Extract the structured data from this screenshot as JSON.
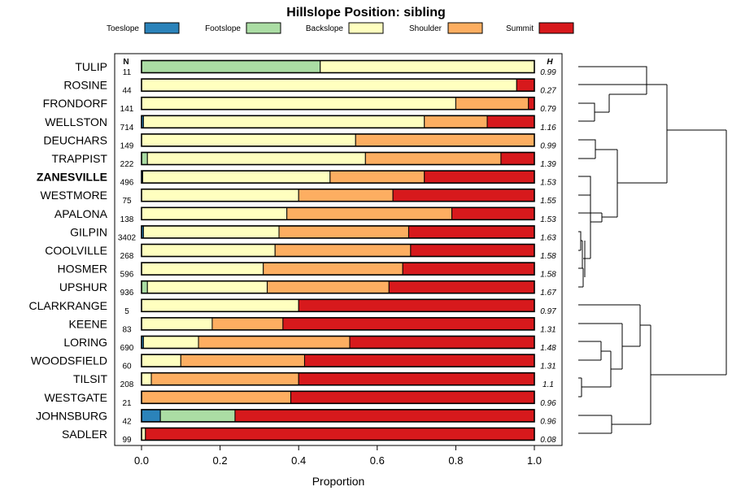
{
  "chart_data": {
    "type": "bar",
    "subtype": "stacked-horizontal-proportion",
    "title": "Hillslope Position: sibling",
    "xlabel": "Proportion",
    "ylabel": "",
    "xlim": [
      0,
      1
    ],
    "x_ticks": [
      "0.0",
      "0.2",
      "0.4",
      "0.6",
      "0.8",
      "1.0"
    ],
    "x_tick_values": [
      0,
      0.2,
      0.4,
      0.6,
      0.8,
      1.0
    ],
    "n_header": "N",
    "h_header": "H",
    "highlighted_row": "ZANESVILLE",
    "legend": [
      {
        "name": "Toeslope",
        "color": "#2b83ba"
      },
      {
        "name": "Footslope",
        "color": "#abdda4"
      },
      {
        "name": "Backslope",
        "color": "#ffffbf"
      },
      {
        "name": "Shoulder",
        "color": "#fdae61"
      },
      {
        "name": "Summit",
        "color": "#d7191c"
      }
    ],
    "rows": [
      {
        "name": "TULIP",
        "n": "11",
        "h": "0.99",
        "values": [
          0,
          0.455,
          0.545,
          0,
          0
        ]
      },
      {
        "name": "ROSINE",
        "n": "44",
        "h": "0.27",
        "values": [
          0,
          0,
          0.955,
          0,
          0.045
        ]
      },
      {
        "name": "FRONDORF",
        "n": "141",
        "h": "0.79",
        "values": [
          0,
          0,
          0.8,
          0.185,
          0.015
        ]
      },
      {
        "name": "WELLSTON",
        "n": "714",
        "h": "1.16",
        "values": [
          0.005,
          0,
          0.715,
          0.16,
          0.12
        ]
      },
      {
        "name": "DEUCHARS",
        "n": "149",
        "h": "0.99",
        "values": [
          0,
          0,
          0.545,
          0.455,
          0
        ]
      },
      {
        "name": "TRAPPIST",
        "n": "222",
        "h": "1.39",
        "values": [
          0,
          0.015,
          0.555,
          0.345,
          0.085
        ]
      },
      {
        "name": "ZANESVILLE",
        "n": "496",
        "h": "1.53",
        "values": [
          0.003,
          0,
          0.477,
          0.24,
          0.28
        ]
      },
      {
        "name": "WESTMORE",
        "n": "75",
        "h": "1.55",
        "values": [
          0,
          0,
          0.4,
          0.24,
          0.36
        ]
      },
      {
        "name": "APALONA",
        "n": "138",
        "h": "1.53",
        "values": [
          0,
          0,
          0.37,
          0.42,
          0.21
        ]
      },
      {
        "name": "GILPIN",
        "n": "3402",
        "h": "1.63",
        "values": [
          0.005,
          0,
          0.345,
          0.33,
          0.32
        ]
      },
      {
        "name": "COOLVILLE",
        "n": "268",
        "h": "1.58",
        "values": [
          0,
          0,
          0.34,
          0.345,
          0.315
        ]
      },
      {
        "name": "HOSMER",
        "n": "596",
        "h": "1.58",
        "values": [
          0,
          0,
          0.31,
          0.355,
          0.335
        ]
      },
      {
        "name": "UPSHUR",
        "n": "936",
        "h": "1.67",
        "values": [
          0,
          0.015,
          0.305,
          0.31,
          0.37
        ]
      },
      {
        "name": "CLARKRANGE",
        "n": "5",
        "h": "0.97",
        "values": [
          0,
          0,
          0.4,
          0,
          0.6
        ]
      },
      {
        "name": "KEENE",
        "n": "83",
        "h": "1.31",
        "values": [
          0,
          0,
          0.18,
          0.18,
          0.64
        ]
      },
      {
        "name": "LORING",
        "n": "690",
        "h": "1.48",
        "values": [
          0.005,
          0,
          0.14,
          0.385,
          0.47
        ]
      },
      {
        "name": "WOODSFIELD",
        "n": "60",
        "h": "1.31",
        "values": [
          0,
          0,
          0.1,
          0.315,
          0.585
        ]
      },
      {
        "name": "TILSIT",
        "n": "208",
        "h": "1.1",
        "values": [
          0,
          0,
          0.025,
          0.375,
          0.6
        ]
      },
      {
        "name": "WESTGATE",
        "n": "21",
        "h": "0.96",
        "values": [
          0,
          0,
          0,
          0.38,
          0.62
        ]
      },
      {
        "name": "JOHNSBURG",
        "n": "42",
        "h": "0.96",
        "values": [
          0.048,
          0.19,
          0,
          0,
          0.762
        ]
      },
      {
        "name": "SADLER",
        "n": "99",
        "h": "0.08",
        "values": [
          0,
          0,
          0.01,
          0,
          0.99
        ]
      }
    ],
    "dendrogram": {
      "description": "Hierarchical clustering of row profiles",
      "merges": [
        [
          [
            "TULIP",
            "ROSINE"
          ]
        ],
        [
          [
            "FRONDORF",
            "WELLSTON"
          ]
        ],
        [
          [
            "DEUCHARS",
            "TRAPPIST"
          ]
        ],
        [
          [
            "GILPIN",
            "COOLVILLE"
          ]
        ]
      ]
    }
  }
}
